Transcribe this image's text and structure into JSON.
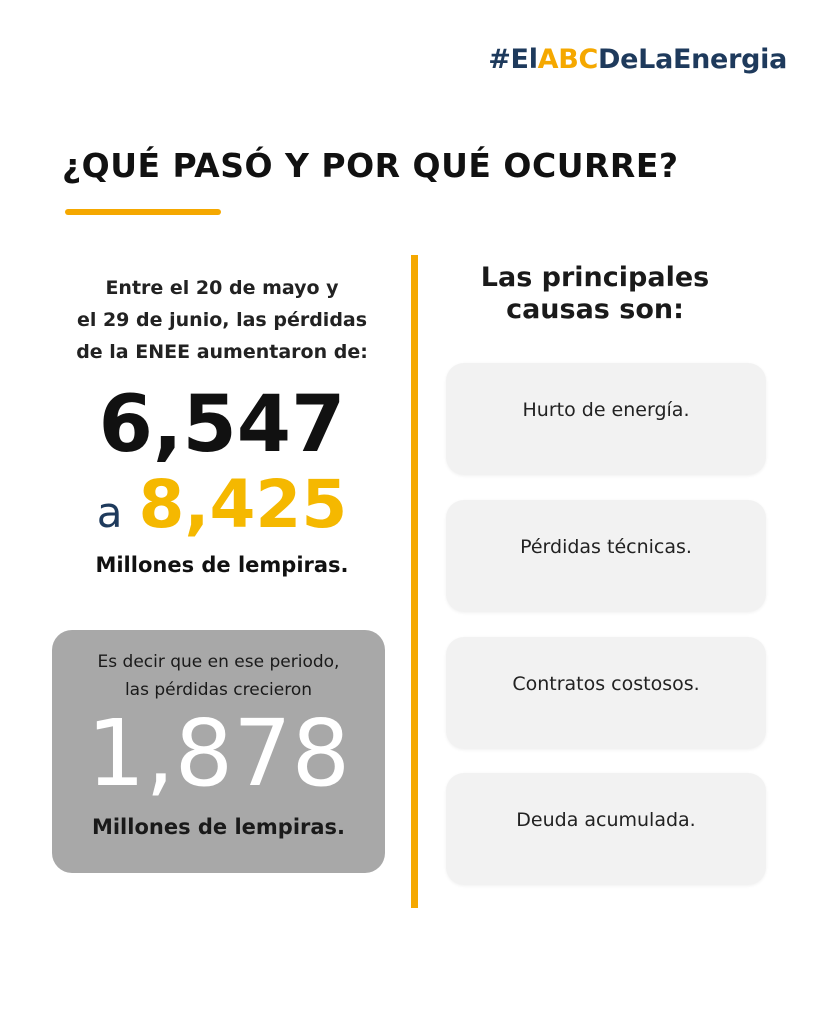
{
  "header": {
    "hashtag": [
      "#El",
      "ABC",
      "DeLaEnergia"
    ],
    "title": "¿QUÉ PASÓ Y POR QUÉ OCURRE?"
  },
  "left": {
    "intro": [
      "Entre el 20 de mayo y",
      "el 29 de junio, las pérdidas",
      "de la ENEE aumentaron de:"
    ],
    "from": "6,547",
    "connector": "a",
    "to": "8,425",
    "unit": "Millones de lempiras.",
    "box": {
      "text": [
        "Es decir que en ese periodo,",
        "las pérdidas crecieron"
      ],
      "amount": "1,878",
      "unit": "Millones de lempiras."
    }
  },
  "right": {
    "heading": [
      "Las principales",
      "causas son:"
    ],
    "causes": [
      "Hurto de energía.",
      "Pérdidas técnicas.",
      "Contratos costosos.",
      "Deuda acumulada."
    ]
  }
}
